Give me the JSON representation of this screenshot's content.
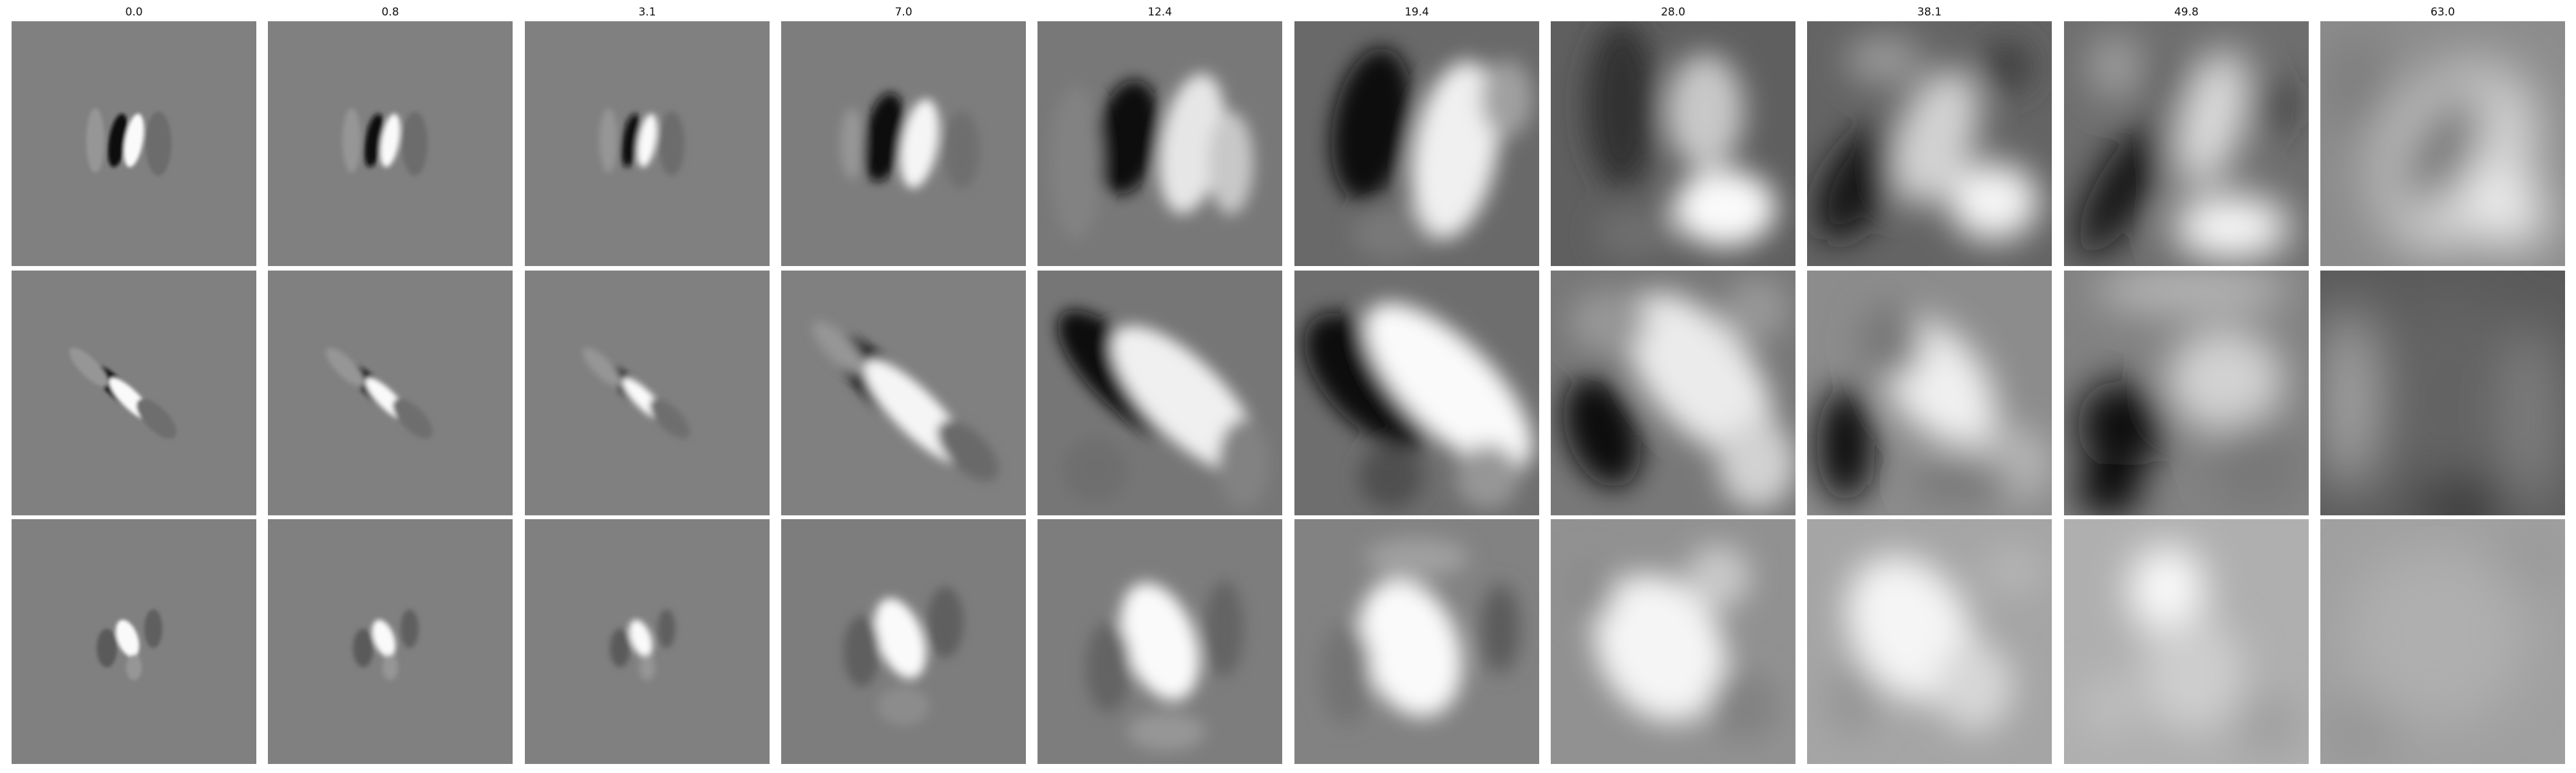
{
  "figure": {
    "column_titles": [
      "0.0",
      "0.8",
      "3.1",
      "7.0",
      "12.4",
      "19.4",
      "28.0",
      "38.1",
      "49.8",
      "63.0"
    ],
    "row_count": 3,
    "colormap": "grayscale",
    "background_color": "#ffffff",
    "title_color": "#111111"
  }
}
